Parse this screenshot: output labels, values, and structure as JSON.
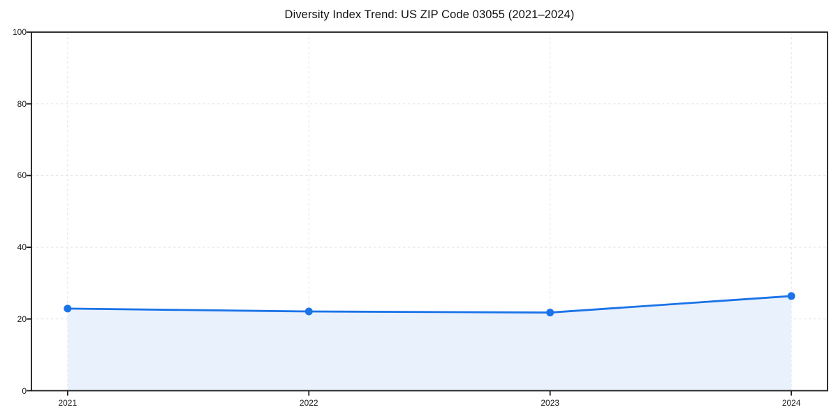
{
  "chart_data": {
    "type": "line",
    "area_fill": true,
    "title": "Diversity Index Trend: US ZIP Code 03055 (2021–2024)",
    "categories": [
      "2021",
      "2022",
      "2023",
      "2024"
    ],
    "series": [
      {
        "name": "Diversity Index",
        "values": [
          22.9,
          22.1,
          21.8,
          26.4
        ]
      }
    ],
    "xlabel": "",
    "ylabel": "",
    "ylim": [
      0,
      100
    ],
    "yticks": [
      0,
      20,
      40,
      60,
      80,
      100
    ],
    "ytick_labels": [
      "0",
      "20",
      "40",
      "60",
      "80",
      "100"
    ],
    "grid": true,
    "grid_style": "dashed",
    "legend": "none",
    "marker": "circle",
    "colors": {
      "line": "#1a73e8",
      "marker": "#1a73e8",
      "fill": "#e8f1fc",
      "grid": "#e3e3e3",
      "axis": "#1a1a1a",
      "background": "#ffffff",
      "title_text": "#111111",
      "tick_text": "#1a1a1a"
    }
  }
}
